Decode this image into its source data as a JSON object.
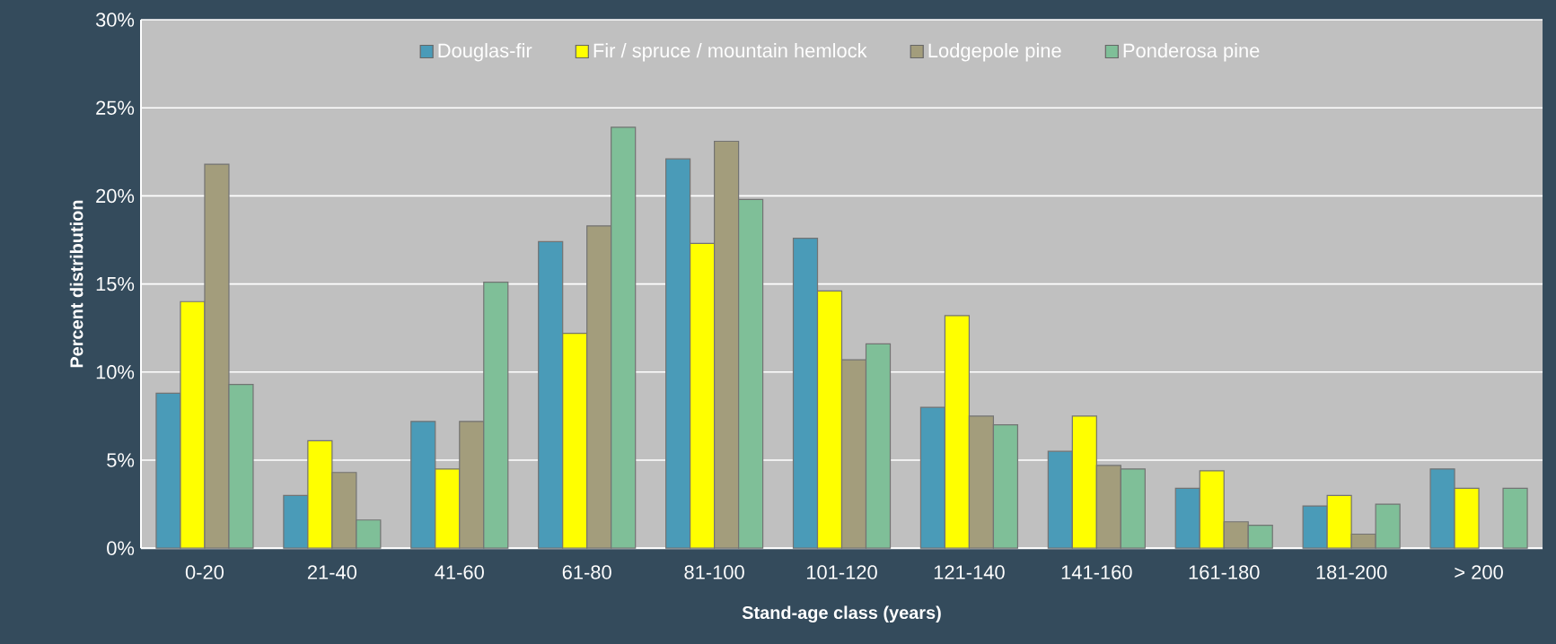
{
  "chart_data": {
    "type": "bar",
    "xlabel": "Stand-age class (years)",
    "ylabel": "Percent distribution",
    "categories": [
      "0-20",
      "21-40",
      "41-60",
      "61-80",
      "81-100",
      "101-120",
      "121-140",
      "141-160",
      "161-180",
      "181-200",
      "> 200"
    ],
    "series": [
      {
        "name": "Douglas-fir",
        "color": "#4a9bb8",
        "values": [
          8.8,
          3.0,
          7.2,
          17.4,
          22.1,
          17.6,
          8.0,
          5.5,
          3.4,
          2.4,
          4.5
        ]
      },
      {
        "name": "Fir / spruce / mountain hemlock",
        "color": "#ffff00",
        "values": [
          14.0,
          6.1,
          4.5,
          12.2,
          17.3,
          14.6,
          13.2,
          7.5,
          4.4,
          3.0,
          3.4
        ]
      },
      {
        "name": "Lodgepole pine",
        "color": "#a39d7c",
        "values": [
          21.8,
          4.3,
          7.2,
          18.3,
          23.1,
          10.7,
          7.5,
          4.7,
          1.5,
          0.8,
          null
        ]
      },
      {
        "name": "Ponderosa pine",
        "color": "#7fbf98",
        "values": [
          9.3,
          1.6,
          15.1,
          23.9,
          19.8,
          11.6,
          7.0,
          4.5,
          1.3,
          2.5,
          3.4
        ]
      }
    ],
    "ylim": [
      0,
      30
    ],
    "yticks": [
      {
        "value": 0,
        "label": "0%"
      },
      {
        "value": 5,
        "label": "5%"
      },
      {
        "value": 10,
        "label": "10%"
      },
      {
        "value": 15,
        "label": "15%"
      },
      {
        "value": 20,
        "label": "20%"
      },
      {
        "value": 25,
        "label": "25%"
      },
      {
        "value": 30,
        "label": "30%"
      }
    ],
    "grid": "y",
    "legend": "top"
  }
}
